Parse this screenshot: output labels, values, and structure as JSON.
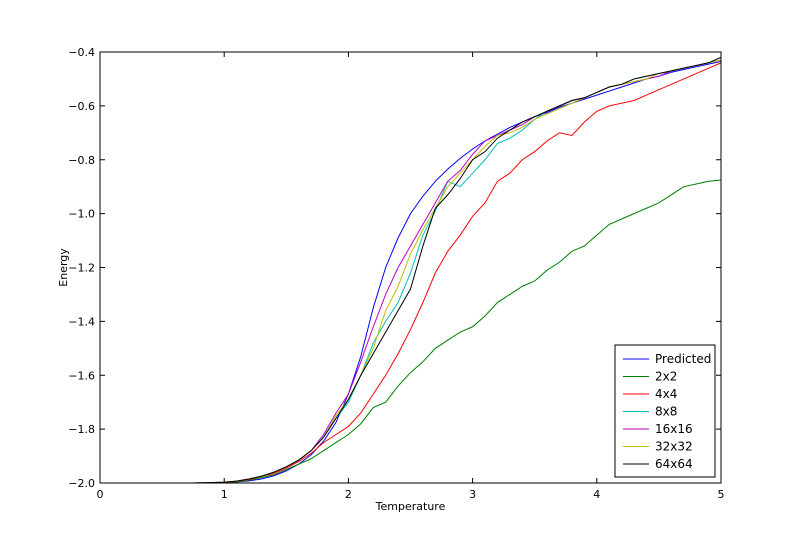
{
  "chart_data": {
    "type": "line",
    "xlabel": "Temperature",
    "ylabel": "Energy",
    "xlim": [
      0,
      5
    ],
    "ylim": [
      -2.0,
      -0.4
    ],
    "xticks": [
      "0",
      "1",
      "2",
      "3",
      "4",
      "5"
    ],
    "xtick_values": [
      0,
      1,
      2,
      3,
      4,
      5
    ],
    "yticks": [
      "−2.0",
      "−1.8",
      "−1.6",
      "−1.4",
      "−1.2",
      "−1.0",
      "−0.8",
      "−0.6",
      "−0.4"
    ],
    "ytick_values": [
      -2.0,
      -1.8,
      -1.6,
      -1.4,
      -1.2,
      -1.0,
      -0.8,
      -0.6,
      -0.4
    ],
    "grid": false,
    "legend_position": "lower-right",
    "x": [
      0.25,
      0.5,
      0.75,
      1.0,
      1.1,
      1.2,
      1.3,
      1.4,
      1.5,
      1.6,
      1.7,
      1.8,
      1.9,
      2.0,
      2.1,
      2.2,
      2.3,
      2.4,
      2.5,
      2.6,
      2.7,
      2.8,
      2.9,
      3.0,
      3.1,
      3.2,
      3.3,
      3.4,
      3.5,
      3.6,
      3.7,
      3.8,
      3.9,
      4.0,
      4.1,
      4.2,
      4.3,
      4.4,
      4.5,
      4.6,
      4.7,
      4.8,
      4.9,
      5.0
    ],
    "series": [
      {
        "name": "Predicted",
        "color": "#0000ff",
        "values": [
          -2.0,
          -2.0,
          -2.0,
          -1.999,
          -1.996,
          -1.992,
          -1.985,
          -1.973,
          -1.955,
          -1.93,
          -1.895,
          -1.845,
          -1.775,
          -1.67,
          -1.53,
          -1.35,
          -1.2,
          -1.09,
          -1.0,
          -0.935,
          -0.88,
          -0.835,
          -0.795,
          -0.76,
          -0.73,
          -0.705,
          -0.68,
          -0.66,
          -0.64,
          -0.625,
          -0.605,
          -0.59,
          -0.575,
          -0.56,
          -0.545,
          -0.53,
          -0.515,
          -0.5,
          -0.49,
          -0.475,
          -0.465,
          -0.455,
          -0.445,
          -0.435
        ]
      },
      {
        "name": "2x2",
        "color": "#008000",
        "values": [
          -2.0,
          -2.0,
          -2.0,
          -1.998,
          -1.996,
          -1.99,
          -1.98,
          -1.97,
          -1.95,
          -1.93,
          -1.91,
          -1.88,
          -1.85,
          -1.82,
          -1.78,
          -1.72,
          -1.7,
          -1.64,
          -1.59,
          -1.55,
          -1.5,
          -1.47,
          -1.44,
          -1.42,
          -1.38,
          -1.33,
          -1.3,
          -1.27,
          -1.25,
          -1.21,
          -1.18,
          -1.14,
          -1.12,
          -1.08,
          -1.04,
          -1.02,
          -1.0,
          -0.98,
          -0.96,
          -0.93,
          -0.9,
          -0.89,
          -0.88,
          -0.875
        ]
      },
      {
        "name": "4x4",
        "color": "#ff0000",
        "values": [
          -2.0,
          -2.0,
          -2.0,
          -1.997,
          -1.993,
          -1.988,
          -1.975,
          -1.965,
          -1.945,
          -1.92,
          -1.89,
          -1.85,
          -1.82,
          -1.79,
          -1.74,
          -1.67,
          -1.6,
          -1.52,
          -1.43,
          -1.33,
          -1.22,
          -1.14,
          -1.08,
          -1.01,
          -0.96,
          -0.88,
          -0.85,
          -0.8,
          -0.77,
          -0.73,
          -0.7,
          -0.71,
          -0.66,
          -0.62,
          -0.6,
          -0.59,
          -0.58,
          -0.56,
          -0.54,
          -0.52,
          -0.5,
          -0.48,
          -0.46,
          -0.44
        ]
      },
      {
        "name": "8x8",
        "color": "#00bfbf",
        "values": [
          -2.0,
          -2.0,
          -2.0,
          -1.997,
          -1.993,
          -1.985,
          -1.975,
          -1.96,
          -1.94,
          -1.915,
          -1.88,
          -1.83,
          -1.76,
          -1.7,
          -1.6,
          -1.48,
          -1.4,
          -1.33,
          -1.22,
          -1.08,
          -0.99,
          -0.88,
          -0.9,
          -0.85,
          -0.8,
          -0.74,
          -0.72,
          -0.69,
          -0.65,
          -0.62,
          -0.6,
          -0.58,
          -0.57,
          -0.55,
          -0.53,
          -0.52,
          -0.5,
          -0.49,
          -0.48,
          -0.47,
          -0.46,
          -0.45,
          -0.44,
          -0.43
        ]
      },
      {
        "name": "16x16",
        "color": "#bf00bf",
        "values": [
          -2.0,
          -2.0,
          -2.0,
          -1.997,
          -1.993,
          -1.985,
          -1.975,
          -1.96,
          -1.94,
          -1.915,
          -1.88,
          -1.82,
          -1.74,
          -1.67,
          -1.55,
          -1.42,
          -1.3,
          -1.2,
          -1.12,
          -1.04,
          -0.96,
          -0.88,
          -0.84,
          -0.78,
          -0.73,
          -0.71,
          -0.69,
          -0.67,
          -0.64,
          -0.62,
          -0.6,
          -0.58,
          -0.57,
          -0.55,
          -0.53,
          -0.52,
          -0.51,
          -0.5,
          -0.49,
          -0.47,
          -0.46,
          -0.45,
          -0.44,
          -0.43
        ]
      },
      {
        "name": "32x32",
        "color": "#bfbf00",
        "values": [
          -2.0,
          -2.0,
          -2.0,
          -1.997,
          -1.993,
          -1.985,
          -1.975,
          -1.96,
          -1.94,
          -1.915,
          -1.88,
          -1.83,
          -1.75,
          -1.69,
          -1.6,
          -1.5,
          -1.36,
          -1.27,
          -1.15,
          -1.06,
          -0.98,
          -0.9,
          -0.85,
          -0.8,
          -0.75,
          -0.71,
          -0.7,
          -0.68,
          -0.65,
          -0.63,
          -0.61,
          -0.59,
          -0.57,
          -0.55,
          -0.53,
          -0.52,
          -0.51,
          -0.5,
          -0.48,
          -0.47,
          -0.46,
          -0.45,
          -0.44,
          -0.43
        ]
      },
      {
        "name": "64x64",
        "color": "#000000",
        "values": [
          -2.0,
          -2.0,
          -2.0,
          -1.997,
          -1.993,
          -1.985,
          -1.975,
          -1.96,
          -1.94,
          -1.915,
          -1.88,
          -1.83,
          -1.76,
          -1.69,
          -1.6,
          -1.52,
          -1.44,
          -1.36,
          -1.28,
          -1.12,
          -0.98,
          -0.93,
          -0.87,
          -0.8,
          -0.77,
          -0.72,
          -0.69,
          -0.66,
          -0.64,
          -0.62,
          -0.6,
          -0.58,
          -0.57,
          -0.55,
          -0.53,
          -0.52,
          -0.5,
          -0.49,
          -0.48,
          -0.47,
          -0.46,
          -0.45,
          -0.44,
          -0.42
        ]
      }
    ]
  }
}
